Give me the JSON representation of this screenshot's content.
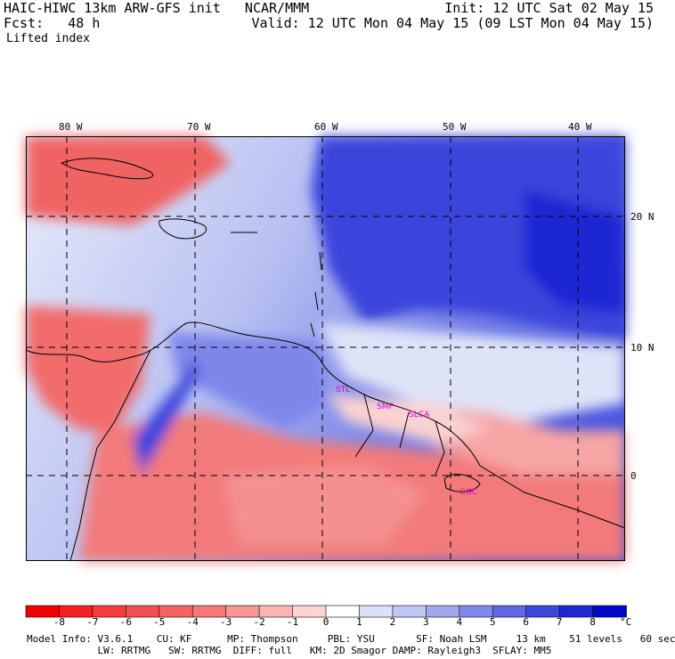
{
  "header": {
    "model_line": "HAIC-HIWC 13km ARW-GFS init   NCAR/MMM",
    "init": "Init: 12 UTC Sat 02 May 15",
    "fcst": "Fcst:   48 h",
    "valid": "Valid: 12 UTC Mon 04 May 15 (09 LST Mon 04 May 15)",
    "field": "Lifted index"
  },
  "map": {
    "longitude_labels": [
      "80 W",
      "70 W",
      "60 W",
      "50 W",
      "40 W"
    ],
    "latitude_labels": [
      "20 N",
      "10 N",
      "0"
    ],
    "stations": [
      "STL",
      "SMP",
      "SLCA",
      "SGC"
    ]
  },
  "colorbar": {
    "labels": [
      "-8",
      "-7",
      "-6",
      "-5",
      "-4",
      "-3",
      "-2",
      "-1",
      "0",
      "1",
      "2",
      "3",
      "4",
      "5",
      "6",
      "7",
      "8"
    ],
    "unit": "°C",
    "colors": [
      "#f00000",
      "#f52020",
      "#f53c3c",
      "#f55050",
      "#f56464",
      "#f87878",
      "#f89696",
      "#fbb4b4",
      "#fcd4d4",
      "#ffffff",
      "#dce0f8",
      "#c0c6f4",
      "#a0a8f0",
      "#8088ec",
      "#6068e4",
      "#4048dc",
      "#2028d4",
      "#0008c8"
    ]
  },
  "footer": {
    "line1": "Model Info: V3.6.1    CU: KF      MP: Thompson     PBL: YSU       SF: Noah LSM     13 km    51 levels   60 sec",
    "line2": "            LW: RRTMG   SW: RRTMG  DIFF: full   KM: 2D Smagor DAMP: Rayleigh3  SFLAY: MM5"
  }
}
